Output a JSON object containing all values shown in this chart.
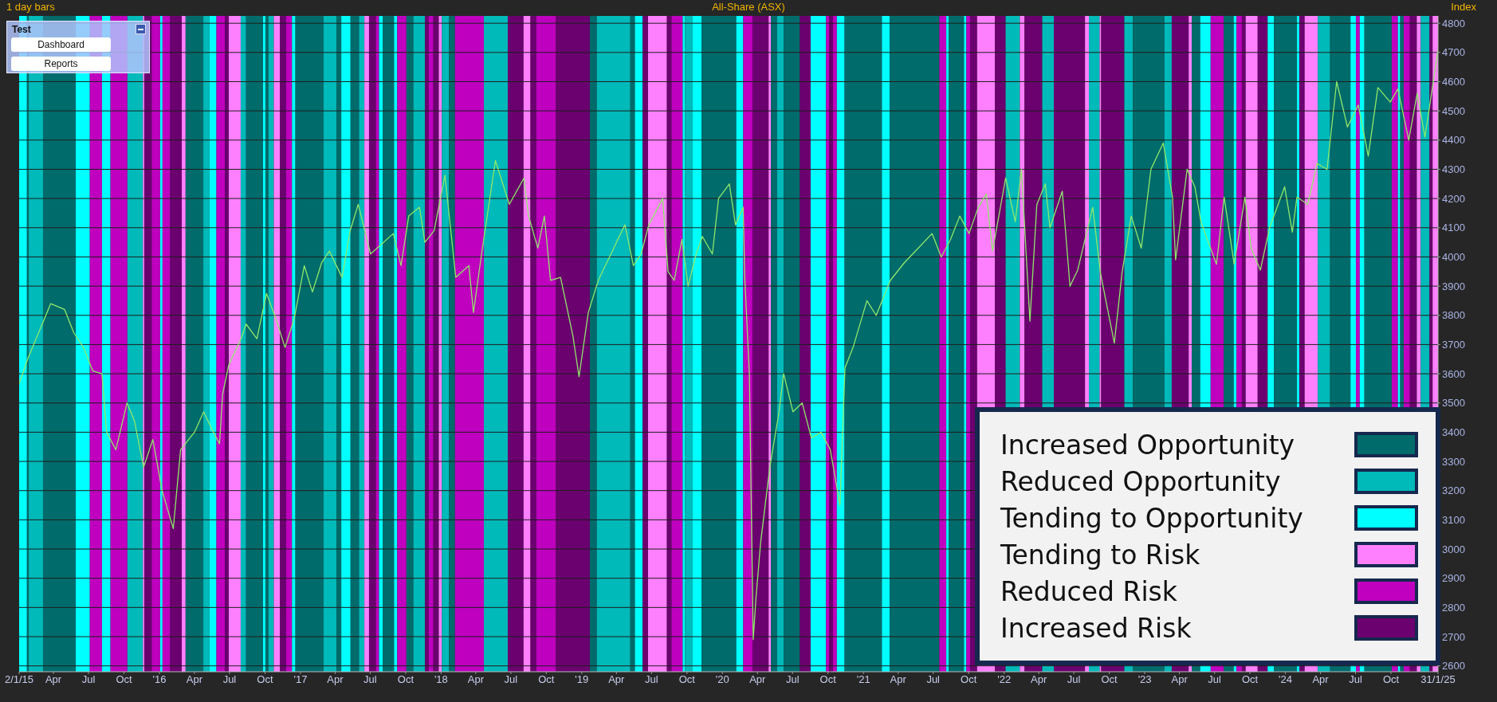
{
  "chart_data": {
    "type": "line",
    "title": "All-Share (ASX)",
    "ylabel": "Index",
    "annotations": [
      "1 day bars",
      "Test",
      "Dashboard",
      "Reports",
      "Increased Opportunity",
      "Reduced Opportunity",
      "Tending to Opportunity",
      "Tending to Risk",
      "Reduced Risk",
      "Increased Risk"
    ],
    "color": "#8fe86a",
    "marker": "none",
    "line_style": "solid",
    "grid": "y",
    "xlim": [
      "2015-01-02",
      "2025-01-31"
    ],
    "ylim": [
      2580,
      4825
    ],
    "yticks": [
      2600,
      2700,
      2800,
      2900,
      3000,
      3100,
      3200,
      3300,
      3400,
      3500,
      3600,
      3700,
      3800,
      3900,
      4000,
      4100,
      4200,
      4300,
      4400,
      4500,
      4600,
      4700,
      4800
    ],
    "xticks": [
      {
        "value": "2015-01-02",
        "label": "2/1/15"
      },
      {
        "value": "2015-04-01",
        "label": "Apr"
      },
      {
        "value": "2015-07-01",
        "label": "Jul"
      },
      {
        "value": "2015-10-01",
        "label": "Oct"
      },
      {
        "value": "2016-01-01",
        "label": "'16"
      },
      {
        "value": "2016-04-01",
        "label": "Apr"
      },
      {
        "value": "2016-07-01",
        "label": "Jul"
      },
      {
        "value": "2016-10-01",
        "label": "Oct"
      },
      {
        "value": "2017-01-01",
        "label": "'17"
      },
      {
        "value": "2017-04-01",
        "label": "Apr"
      },
      {
        "value": "2017-07-01",
        "label": "Jul"
      },
      {
        "value": "2017-10-01",
        "label": "Oct"
      },
      {
        "value": "2018-01-01",
        "label": "'18"
      },
      {
        "value": "2018-04-01",
        "label": "Apr"
      },
      {
        "value": "2018-07-01",
        "label": "Jul"
      },
      {
        "value": "2018-10-01",
        "label": "Oct"
      },
      {
        "value": "2019-01-01",
        "label": "'19"
      },
      {
        "value": "2019-04-01",
        "label": "Apr"
      },
      {
        "value": "2019-07-01",
        "label": "Jul"
      },
      {
        "value": "2019-10-01",
        "label": "Oct"
      },
      {
        "value": "2020-01-01",
        "label": "'20"
      },
      {
        "value": "2020-04-01",
        "label": "Apr"
      },
      {
        "value": "2020-07-01",
        "label": "Jul"
      },
      {
        "value": "2020-10-01",
        "label": "Oct"
      },
      {
        "value": "2021-01-01",
        "label": "'21"
      },
      {
        "value": "2021-04-01",
        "label": "Apr"
      },
      {
        "value": "2021-07-01",
        "label": "Jul"
      },
      {
        "value": "2021-10-01",
        "label": "Oct"
      },
      {
        "value": "2022-01-01",
        "label": "'22"
      },
      {
        "value": "2022-04-01",
        "label": "Apr"
      },
      {
        "value": "2022-07-01",
        "label": "Jul"
      },
      {
        "value": "2022-10-01",
        "label": "Oct"
      },
      {
        "value": "2023-01-01",
        "label": "'23"
      },
      {
        "value": "2023-04-01",
        "label": "Apr"
      },
      {
        "value": "2023-07-01",
        "label": "Jul"
      },
      {
        "value": "2023-10-01",
        "label": "Oct"
      },
      {
        "value": "2024-01-01",
        "label": "'24"
      },
      {
        "value": "2024-04-01",
        "label": "Apr"
      },
      {
        "value": "2024-07-01",
        "label": "Jul"
      },
      {
        "value": "2024-10-01",
        "label": "Oct"
      },
      {
        "value": "2025-01-31",
        "label": "31/1/25"
      }
    ],
    "x": [
      "2015-01-02",
      "2015-01-24",
      "2015-03-25",
      "2015-04-30",
      "2015-05-24",
      "2015-06-18",
      "2015-07-12",
      "2015-08-05",
      "2015-08-17",
      "2015-09-10",
      "2015-10-09",
      "2015-10-28",
      "2015-11-21",
      "2015-12-15",
      "2016-01-08",
      "2016-02-06",
      "2016-02-25",
      "2016-04-01",
      "2016-04-25",
      "2016-05-20",
      "2016-06-05",
      "2016-06-13",
      "2016-06-29",
      "2016-07-31",
      "2016-08-13",
      "2016-09-10",
      "2016-10-05",
      "2016-10-29",
      "2016-11-22",
      "2016-12-16",
      "2017-01-11",
      "2017-02-01",
      "2017-02-25",
      "2017-03-17",
      "2017-04-19",
      "2017-05-10",
      "2017-05-31",
      "2017-07-02",
      "2017-08-30",
      "2017-09-19",
      "2017-10-09",
      "2017-11-06",
      "2017-11-20",
      "2017-12-14",
      "2018-01-11",
      "2018-02-08",
      "2018-03-14",
      "2018-03-26",
      "2018-04-16",
      "2018-05-22",
      "2018-06-27",
      "2018-08-04",
      "2018-08-16",
      "2018-09-09",
      "2018-09-26",
      "2018-10-12",
      "2018-11-07",
      "2018-12-09",
      "2018-12-25",
      "2019-01-18",
      "2019-02-13",
      "2019-03-25",
      "2019-04-23",
      "2019-05-15",
      "2019-06-04",
      "2019-06-24",
      "2019-07-30",
      "2019-08-13",
      "2019-08-29",
      "2019-09-18",
      "2019-10-04",
      "2019-10-25",
      "2019-11-10",
      "2019-12-06",
      "2019-12-22",
      "2020-01-19",
      "2020-02-04",
      "2020-02-24",
      "2020-02-28",
      "2020-03-11",
      "2020-03-21",
      "2020-03-28",
      "2020-04-09",
      "2020-05-03",
      "2020-05-27",
      "2020-06-08",
      "2020-07-02",
      "2020-07-26",
      "2020-08-19",
      "2020-09-13",
      "2020-10-07",
      "2020-11-01",
      "2020-11-14",
      "2020-12-05",
      "2021-01-10",
      "2021-02-03",
      "2021-03-12",
      "2021-04-17",
      "2021-05-23",
      "2021-06-28",
      "2021-07-22",
      "2021-08-15",
      "2021-09-08",
      "2021-10-02",
      "2021-10-26",
      "2021-11-16",
      "2021-12-02",
      "2022-01-05",
      "2022-01-30",
      "2022-02-15",
      "2022-03-09",
      "2022-03-27",
      "2022-04-18",
      "2022-04-30",
      "2022-06-01",
      "2022-06-21",
      "2022-07-11",
      "2022-08-19",
      "2022-09-08",
      "2022-10-14",
      "2022-11-03",
      "2022-11-27",
      "2022-12-23",
      "2023-01-17",
      "2023-02-18",
      "2023-03-14",
      "2023-03-22",
      "2023-04-21",
      "2023-05-11",
      "2023-05-27",
      "2023-07-06",
      "2023-07-26",
      "2023-08-21",
      "2023-09-18",
      "2023-10-04",
      "2023-10-28",
      "2023-11-21",
      "2023-12-30",
      "2024-01-19",
      "2024-01-31",
      "2024-02-28",
      "2024-03-23",
      "2024-04-18",
      "2024-05-13",
      "2024-06-10",
      "2024-07-08",
      "2024-08-03",
      "2024-08-28",
      "2024-09-29",
      "2024-10-19",
      "2024-11-16",
      "2024-12-08",
      "2024-12-28",
      "2025-01-13",
      "2025-01-31"
    ],
    "values": [
      3565,
      3650,
      3840,
      3820,
      3740,
      3690,
      3610,
      3600,
      3400,
      3340,
      3500,
      3440,
      3280,
      3375,
      3200,
      3070,
      3340,
      3400,
      3470,
      3400,
      3360,
      3530,
      3630,
      3720,
      3770,
      3720,
      3875,
      3790,
      3690,
      3790,
      3970,
      3880,
      3980,
      4020,
      3930,
      4090,
      4180,
      4010,
      4080,
      3970,
      4140,
      4170,
      4050,
      4090,
      4280,
      3930,
      3970,
      3810,
      4010,
      4330,
      4180,
      4270,
      4140,
      4030,
      4140,
      3920,
      3930,
      3730,
      3590,
      3810,
      3920,
      4030,
      4110,
      3970,
      4010,
      4110,
      4200,
      3950,
      3920,
      4060,
      3900,
      4010,
      4070,
      4010,
      4200,
      4250,
      4110,
      4170,
      3930,
      3600,
      2690,
      2830,
      3020,
      3280,
      3470,
      3600,
      3470,
      3500,
      3380,
      3400,
      3340,
      3150,
      3620,
      3690,
      3850,
      3800,
      3920,
      3980,
      4030,
      4080,
      4000,
      4060,
      4140,
      4080,
      4170,
      4215,
      4020,
      4270,
      4120,
      4300,
      3780,
      4180,
      4250,
      4100,
      4225,
      3900,
      3955,
      4170,
      3945,
      3705,
      3945,
      4140,
      4030,
      4300,
      4390,
      4205,
      3990,
      4300,
      4240,
      4120,
      3975,
      4205,
      3975,
      4205,
      4030,
      3955,
      4100,
      4240,
      4085,
      4205,
      4180,
      4320,
      4300,
      4600,
      4445,
      4520,
      4345,
      4580,
      4530,
      4575,
      4400,
      4560,
      4410,
      4550,
      4710
    ],
    "bands": [
      {
        "axis": "x",
        "from": "2015-01-22",
        "to": "2015-01-27",
        "color": "#006b6b"
      },
      {
        "axis": "x",
        "from": "2015-01-27",
        "to": "2015-03-05",
        "color": "#00b9b9"
      },
      {
        "axis": "x",
        "from": "2015-01-02",
        "to": "2015-01-22",
        "color": "#00ffff"
      },
      {
        "axis": "x",
        "from": "2015-11-19",
        "to": "2015-11-23",
        "color": "#ff80ff"
      },
      {
        "axis": "x",
        "from": "2015-07-04",
        "to": "2015-08-05",
        "color": "#bf00bf"
      },
      {
        "axis": "x",
        "from": "2015-11-23",
        "to": "2015-12-12",
        "color": "#6b006f"
      },
      {
        "axis": "x",
        "from": "2015-03-05",
        "to": "2015-05-29",
        "color": "#006b6b"
      },
      {
        "axis": "x",
        "from": "2015-05-29",
        "to": "2015-07-04",
        "color": "#00ffff"
      },
      {
        "axis": "x",
        "from": "2015-08-05",
        "to": "2015-08-27",
        "color": "#00ffff"
      },
      {
        "axis": "x",
        "from": "2015-08-27",
        "to": "2015-10-10",
        "color": "#bf00bf"
      },
      {
        "axis": "x",
        "from": "2015-10-10",
        "to": "2015-11-19",
        "color": "#00b9b9"
      },
      {
        "axis": "x",
        "from": "2015-12-12",
        "to": "2016-01-03",
        "color": "#bf00bf"
      },
      {
        "axis": "x",
        "from": "2016-01-03",
        "to": "2016-01-09",
        "color": "#00ffff"
      },
      {
        "axis": "x",
        "from": "2016-01-09",
        "to": "2016-01-29",
        "color": "#bf00bf"
      },
      {
        "axis": "x",
        "from": "2016-01-29",
        "to": "2016-02-28",
        "color": "#6b006f"
      },
      {
        "axis": "x",
        "from": "2016-02-28",
        "to": "2016-03-09",
        "color": "#ff80ff"
      },
      {
        "axis": "x",
        "from": "2016-03-09",
        "to": "2016-04-24",
        "color": "#006b6b"
      },
      {
        "axis": "x",
        "from": "2016-04-24",
        "to": "2016-05-10",
        "color": "#00b9b9"
      },
      {
        "axis": "x",
        "from": "2016-05-10",
        "to": "2016-05-28",
        "color": "#00ffff"
      },
      {
        "axis": "x",
        "from": "2016-05-28",
        "to": "2016-06-19",
        "color": "#bf00bf"
      },
      {
        "axis": "x",
        "from": "2016-06-19",
        "to": "2016-06-29",
        "color": "#6b006f"
      },
      {
        "axis": "x",
        "from": "2016-06-29",
        "to": "2016-07-30",
        "color": "#ff80ff"
      },
      {
        "axis": "x",
        "from": "2016-07-30",
        "to": "2016-08-13",
        "color": "#00b9b9"
      },
      {
        "axis": "x",
        "from": "2016-08-13",
        "to": "2016-09-26",
        "color": "#006b6b"
      },
      {
        "axis": "x",
        "from": "2016-09-26",
        "to": "2016-10-02",
        "color": "#00ffff"
      },
      {
        "axis": "x",
        "from": "2016-10-02",
        "to": "2016-10-10",
        "color": "#006b6b"
      },
      {
        "axis": "x",
        "from": "2016-10-10",
        "to": "2016-10-24",
        "color": "#00b9b9"
      },
      {
        "axis": "x",
        "from": "2016-10-24",
        "to": "2016-11-09",
        "color": "#ff80ff"
      },
      {
        "axis": "x",
        "from": "2016-11-09",
        "to": "2016-11-25",
        "color": "#6b006f"
      },
      {
        "axis": "x",
        "from": "2016-11-25",
        "to": "2016-12-10",
        "color": "#bf00bf"
      },
      {
        "axis": "x",
        "from": "2016-12-10",
        "to": "2016-12-19",
        "color": "#00ffff"
      },
      {
        "axis": "x",
        "from": "2016-12-19",
        "to": "2017-03-02",
        "color": "#006b6b"
      },
      {
        "axis": "x",
        "from": "2017-03-02",
        "to": "2017-04-05",
        "color": "#00b9b9"
      },
      {
        "axis": "x",
        "from": "2017-04-05",
        "to": "2017-04-17",
        "color": "#006b6b"
      },
      {
        "axis": "x",
        "from": "2017-04-17",
        "to": "2017-05-11",
        "color": "#00ffff"
      },
      {
        "axis": "x",
        "from": "2017-05-11",
        "to": "2017-06-02",
        "color": "#006b6b"
      },
      {
        "axis": "x",
        "from": "2017-06-02",
        "to": "2017-06-16",
        "color": "#00b9b9"
      },
      {
        "axis": "x",
        "from": "2017-06-16",
        "to": "2017-06-28",
        "color": "#ff80ff"
      },
      {
        "axis": "x",
        "from": "2017-06-28",
        "to": "2017-07-16",
        "color": "#6b006f"
      },
      {
        "axis": "x",
        "from": "2017-07-16",
        "to": "2017-07-24",
        "color": "#bf00bf"
      },
      {
        "axis": "x",
        "from": "2017-07-24",
        "to": "2017-08-03",
        "color": "#00ffff"
      },
      {
        "axis": "x",
        "from": "2017-08-03",
        "to": "2017-09-01",
        "color": "#006b6b"
      },
      {
        "axis": "x",
        "from": "2017-09-01",
        "to": "2017-09-09",
        "color": "#00ffff"
      },
      {
        "axis": "x",
        "from": "2017-09-09",
        "to": "2017-10-03",
        "color": "#bf00bf"
      },
      {
        "axis": "x",
        "from": "2017-10-03",
        "to": "2017-10-21",
        "color": "#006b6b"
      },
      {
        "axis": "x",
        "from": "2017-10-21",
        "to": "2017-11-20",
        "color": "#00b9b9"
      },
      {
        "axis": "x",
        "from": "2017-11-20",
        "to": "2017-11-30",
        "color": "#6b006f"
      },
      {
        "axis": "x",
        "from": "2017-11-30",
        "to": "2017-12-12",
        "color": "#bf00bf"
      },
      {
        "axis": "x",
        "from": "2017-12-12",
        "to": "2017-12-26",
        "color": "#6b006f"
      },
      {
        "axis": "x",
        "from": "2017-12-26",
        "to": "2018-01-03",
        "color": "#ff80ff"
      },
      {
        "axis": "x",
        "from": "2018-01-03",
        "to": "2018-01-21",
        "color": "#00b9b9"
      },
      {
        "axis": "x",
        "from": "2018-01-21",
        "to": "2018-02-06",
        "color": "#006b6b"
      },
      {
        "axis": "x",
        "from": "2018-02-06",
        "to": "2018-04-22",
        "color": "#bf00bf"
      },
      {
        "axis": "x",
        "from": "2018-04-22",
        "to": "2018-06-23",
        "color": "#00b9b9"
      },
      {
        "axis": "x",
        "from": "2018-06-23",
        "to": "2018-08-03",
        "color": "#6b006f"
      },
      {
        "axis": "x",
        "from": "2018-08-03",
        "to": "2018-08-21",
        "color": "#ff80ff"
      },
      {
        "axis": "x",
        "from": "2018-08-21",
        "to": "2018-09-05",
        "color": "#6b006f"
      },
      {
        "axis": "x",
        "from": "2018-09-05",
        "to": "2018-10-26",
        "color": "#bf00bf"
      },
      {
        "axis": "x",
        "from": "2018-10-26",
        "to": "2019-01-22",
        "color": "#6b006f"
      },
      {
        "axis": "x",
        "from": "2019-01-22",
        "to": "2019-02-09",
        "color": "#006b6b"
      },
      {
        "axis": "x",
        "from": "2019-02-09",
        "to": "2019-05-07",
        "color": "#00b9b9"
      },
      {
        "axis": "x",
        "from": "2019-05-07",
        "to": "2019-05-19",
        "color": "#006b6b"
      },
      {
        "axis": "x",
        "from": "2019-05-19",
        "to": "2019-06-08",
        "color": "#00ffff"
      },
      {
        "axis": "x",
        "from": "2019-06-08",
        "to": "2019-06-22",
        "color": "#6b006f"
      },
      {
        "axis": "x",
        "from": "2019-06-22",
        "to": "2019-08-10",
        "color": "#ff80ff"
      },
      {
        "axis": "x",
        "from": "2019-08-10",
        "to": "2019-08-22",
        "color": "#6b006f"
      },
      {
        "axis": "x",
        "from": "2019-08-22",
        "to": "2019-09-20",
        "color": "#bf00bf"
      },
      {
        "axis": "x",
        "from": "2019-09-20",
        "to": "2019-09-26",
        "color": "#00ffff"
      },
      {
        "axis": "x",
        "from": "2019-09-26",
        "to": "2019-10-16",
        "color": "#00b9b9"
      },
      {
        "axis": "x",
        "from": "2019-10-16",
        "to": "2019-11-08",
        "color": "#00ffff"
      },
      {
        "axis": "x",
        "from": "2019-11-08",
        "to": "2020-02-06",
        "color": "#006b6b"
      },
      {
        "axis": "x",
        "from": "2020-02-06",
        "to": "2020-02-24",
        "color": "#00ffff"
      },
      {
        "axis": "x",
        "from": "2020-02-24",
        "to": "2020-03-19",
        "color": "#bf00bf"
      },
      {
        "axis": "x",
        "from": "2020-03-19",
        "to": "2020-04-30",
        "color": "#6b006f"
      },
      {
        "axis": "x",
        "from": "2020-04-30",
        "to": "2020-05-06",
        "color": "#ff80ff"
      },
      {
        "axis": "x",
        "from": "2020-05-06",
        "to": "2020-05-22",
        "color": "#006b6b"
      },
      {
        "axis": "x",
        "from": "2020-05-22",
        "to": "2020-06-08",
        "color": "#00b9b9"
      },
      {
        "axis": "x",
        "from": "2020-06-08",
        "to": "2020-07-20",
        "color": "#006b6b"
      },
      {
        "axis": "x",
        "from": "2020-07-20",
        "to": "2020-08-17",
        "color": "#6b006f"
      },
      {
        "axis": "x",
        "from": "2020-08-17",
        "to": "2020-09-26",
        "color": "#00ffff"
      },
      {
        "axis": "x",
        "from": "2020-09-26",
        "to": "2020-10-04",
        "color": "#bf00bf"
      },
      {
        "axis": "x",
        "from": "2020-10-04",
        "to": "2020-10-14",
        "color": "#6b006f"
      },
      {
        "axis": "x",
        "from": "2020-10-14",
        "to": "2020-10-24",
        "color": "#bf00bf"
      },
      {
        "axis": "x",
        "from": "2020-10-24",
        "to": "2020-11-13",
        "color": "#00ffff"
      },
      {
        "axis": "x",
        "from": "2020-11-13",
        "to": "2021-02-18",
        "color": "#006b6b"
      },
      {
        "axis": "x",
        "from": "2021-02-18",
        "to": "2021-03-10",
        "color": "#00ffff"
      },
      {
        "axis": "x",
        "from": "2021-03-10",
        "to": "2021-07-17",
        "color": "#006b6b"
      },
      {
        "axis": "x",
        "from": "2021-07-17",
        "to": "2021-08-04",
        "color": "#bf00bf"
      },
      {
        "axis": "x",
        "from": "2021-08-04",
        "to": "2021-08-10",
        "color": "#00ffff"
      },
      {
        "axis": "x",
        "from": "2021-08-10",
        "to": "2021-09-19",
        "color": "#006b6b"
      },
      {
        "axis": "x",
        "from": "2021-09-19",
        "to": "2021-09-25",
        "color": "#00ffff"
      },
      {
        "axis": "x",
        "from": "2021-09-25",
        "to": "2021-10-05",
        "color": "#bf00bf"
      },
      {
        "axis": "x",
        "from": "2021-10-05",
        "to": "2021-10-23",
        "color": "#6b006f"
      },
      {
        "axis": "x",
        "from": "2021-10-23",
        "to": "2021-12-08",
        "color": "#ff80ff"
      },
      {
        "axis": "x",
        "from": "2021-12-08",
        "to": "2022-01-05",
        "color": "#6b006f"
      },
      {
        "axis": "x",
        "from": "2022-01-05",
        "to": "2022-02-11",
        "color": "#00b9b9"
      },
      {
        "axis": "x",
        "from": "2022-02-11",
        "to": "2022-02-23",
        "color": "#ff80ff"
      },
      {
        "axis": "x",
        "from": "2022-02-23",
        "to": "2022-04-10",
        "color": "#6b006f"
      },
      {
        "axis": "x",
        "from": "2022-04-10",
        "to": "2022-05-10",
        "color": "#00b9b9"
      },
      {
        "axis": "x",
        "from": "2022-05-10",
        "to": "2022-07-30",
        "color": "#6b006f"
      },
      {
        "axis": "x",
        "from": "2022-07-30",
        "to": "2022-08-09",
        "color": "#ff80ff"
      },
      {
        "axis": "x",
        "from": "2022-08-09",
        "to": "2022-09-06",
        "color": "#00b9b9"
      },
      {
        "axis": "x",
        "from": "2022-09-06",
        "to": "2022-09-10",
        "color": "#ff80ff"
      },
      {
        "axis": "x",
        "from": "2022-09-10",
        "to": "2022-11-09",
        "color": "#6b006f"
      },
      {
        "axis": "x",
        "from": "2022-11-09",
        "to": "2022-12-01",
        "color": "#00b9b9"
      },
      {
        "axis": "x",
        "from": "2022-12-01",
        "to": "2023-02-21",
        "color": "#006b6b"
      },
      {
        "axis": "x",
        "from": "2023-02-21",
        "to": "2023-03-12",
        "color": "#00b9b9"
      },
      {
        "axis": "x",
        "from": "2023-03-12",
        "to": "2023-04-25",
        "color": "#6b006f"
      },
      {
        "axis": "x",
        "from": "2023-04-25",
        "to": "2023-05-03",
        "color": "#ff80ff"
      },
      {
        "axis": "x",
        "from": "2023-05-03",
        "to": "2023-05-25",
        "color": "#006b6b"
      },
      {
        "axis": "x",
        "from": "2023-05-25",
        "to": "2023-06-21",
        "color": "#00ffff"
      },
      {
        "axis": "x",
        "from": "2023-06-21",
        "to": "2023-07-25",
        "color": "#bf00bf"
      },
      {
        "axis": "x",
        "from": "2023-07-25",
        "to": "2023-08-20",
        "color": "#006b6b"
      },
      {
        "axis": "x",
        "from": "2023-08-20",
        "to": "2023-08-27",
        "color": "#00ffff"
      },
      {
        "axis": "x",
        "from": "2023-08-27",
        "to": "2023-09-10",
        "color": "#bf00bf"
      },
      {
        "axis": "x",
        "from": "2023-09-10",
        "to": "2023-09-20",
        "color": "#6b006f"
      },
      {
        "axis": "x",
        "from": "2023-09-20",
        "to": "2023-10-21",
        "color": "#ff80ff"
      },
      {
        "axis": "x",
        "from": "2023-10-21",
        "to": "2023-11-16",
        "color": "#6b006f"
      },
      {
        "axis": "x",
        "from": "2023-11-16",
        "to": "2023-12-02",
        "color": "#00ffff"
      },
      {
        "axis": "x",
        "from": "2023-12-02",
        "to": "2024-01-31",
        "color": "#006b6b"
      },
      {
        "axis": "x",
        "from": "2024-01-31",
        "to": "2024-02-06",
        "color": "#00ffff"
      },
      {
        "axis": "x",
        "from": "2024-02-06",
        "to": "2024-02-20",
        "color": "#6b006f"
      },
      {
        "axis": "x",
        "from": "2024-02-20",
        "to": "2024-03-25",
        "color": "#ff80ff"
      },
      {
        "axis": "x",
        "from": "2024-03-25",
        "to": "2024-04-26",
        "color": "#00b9b9"
      },
      {
        "axis": "x",
        "from": "2024-04-26",
        "to": "2024-06-18",
        "color": "#006b6b"
      },
      {
        "axis": "x",
        "from": "2024-06-18",
        "to": "2024-07-02",
        "color": "#00ffff"
      },
      {
        "axis": "x",
        "from": "2024-07-02",
        "to": "2024-07-12",
        "color": "#bf00bf"
      },
      {
        "axis": "x",
        "from": "2024-07-12",
        "to": "2024-07-24",
        "color": "#00ffff"
      },
      {
        "axis": "x",
        "from": "2024-07-24",
        "to": "2024-10-03",
        "color": "#006b6b"
      },
      {
        "axis": "x",
        "from": "2024-10-03",
        "to": "2024-10-19",
        "color": "#bf00bf"
      },
      {
        "axis": "x",
        "from": "2024-10-19",
        "to": "2024-10-25",
        "color": "#00ffff"
      },
      {
        "axis": "x",
        "from": "2024-10-25",
        "to": "2024-11-03",
        "color": "#006b6b"
      },
      {
        "axis": "x",
        "from": "2024-11-03",
        "to": "2024-11-19",
        "color": "#bf00bf"
      },
      {
        "axis": "x",
        "from": "2024-11-19",
        "to": "2024-12-07",
        "color": "#6b006f"
      },
      {
        "axis": "x",
        "from": "2024-12-07",
        "to": "2024-12-17",
        "color": "#ff80ff"
      },
      {
        "axis": "x",
        "from": "2024-12-17",
        "to": "2025-01-09",
        "color": "#00b9b9"
      },
      {
        "axis": "x",
        "from": "2025-01-09",
        "to": "2025-01-17",
        "color": "#6b006f"
      },
      {
        "axis": "x",
        "from": "2025-01-17",
        "to": "2025-01-31",
        "color": "#ff80ff"
      }
    ]
  }
}
